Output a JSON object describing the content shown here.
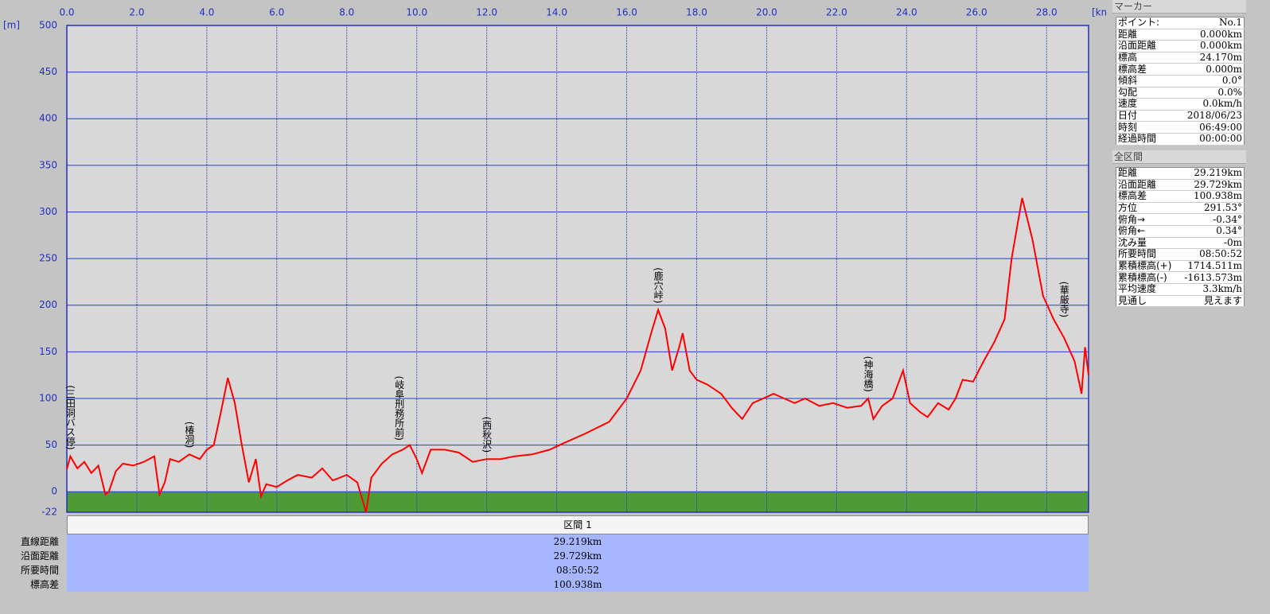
{
  "chart_data": {
    "type": "line",
    "y_unit_label": "[m]",
    "x_unit_label": "[km]",
    "x": [
      0,
      0.1,
      0.3,
      0.5,
      0.7,
      0.9,
      1.1,
      1.2,
      1.4,
      1.6,
      1.9,
      2.2,
      2.5,
      2.65,
      2.8,
      2.95,
      3.2,
      3.5,
      3.8,
      4.0,
      4.2,
      4.4,
      4.6,
      4.8,
      5.0,
      5.2,
      5.4,
      5.55,
      5.7,
      6.0,
      6.3,
      6.6,
      7.0,
      7.3,
      7.6,
      8.0,
      8.3,
      8.55,
      8.7,
      9.0,
      9.3,
      9.6,
      9.8,
      10.0,
      10.15,
      10.4,
      10.8,
      11.2,
      11.6,
      12.0,
      12.4,
      12.8,
      13.3,
      13.8,
      14.2,
      14.8,
      15.5,
      16.0,
      16.4,
      16.7,
      16.9,
      17.1,
      17.3,
      17.5,
      17.6,
      17.8,
      18.0,
      18.3,
      18.7,
      19.0,
      19.3,
      19.6,
      19.9,
      20.2,
      20.5,
      20.8,
      21.1,
      21.5,
      21.9,
      22.3,
      22.7,
      22.9,
      23.05,
      23.3,
      23.6,
      23.9,
      24.1,
      24.4,
      24.6,
      24.9,
      25.2,
      25.4,
      25.6,
      25.9,
      26.2,
      26.5,
      26.8,
      27.0,
      27.3,
      27.6,
      27.9,
      28.2,
      28.5,
      28.8,
      29.0,
      29.1,
      29.2
    ],
    "values": [
      24,
      38,
      25,
      32,
      20,
      28,
      -3,
      0,
      22,
      30,
      28,
      32,
      38,
      -3,
      10,
      35,
      32,
      40,
      35,
      45,
      50,
      85,
      122,
      95,
      50,
      10,
      35,
      -5,
      8,
      5,
      12,
      18,
      15,
      25,
      12,
      18,
      10,
      -22,
      15,
      30,
      40,
      45,
      50,
      35,
      20,
      45,
      45,
      42,
      32,
      35,
      35,
      38,
      40,
      45,
      52,
      62,
      75,
      100,
      130,
      170,
      195,
      175,
      130,
      155,
      170,
      130,
      120,
      115,
      105,
      90,
      78,
      95,
      100,
      105,
      100,
      95,
      100,
      92,
      95,
      90,
      92,
      100,
      78,
      92,
      100,
      130,
      95,
      85,
      80,
      95,
      88,
      100,
      120,
      118,
      140,
      160,
      185,
      250,
      315,
      270,
      210,
      185,
      165,
      140,
      105,
      155,
      125
    ],
    "color": "#ff0000",
    "xlim": [
      0,
      29.2
    ],
    "ylim": [
      -22,
      500
    ],
    "xticks": [
      {
        "value": 0,
        "label": "0.0"
      },
      {
        "value": 2,
        "label": "2.0"
      },
      {
        "value": 4,
        "label": "4.0"
      },
      {
        "value": 6,
        "label": "6.0"
      },
      {
        "value": 8,
        "label": "8.0"
      },
      {
        "value": 10,
        "label": "10.0"
      },
      {
        "value": 12,
        "label": "12.0"
      },
      {
        "value": 14,
        "label": "14.0"
      },
      {
        "value": 16,
        "label": "16.0"
      },
      {
        "value": 18,
        "label": "18.0"
      },
      {
        "value": 20,
        "label": "20.0"
      },
      {
        "value": 22,
        "label": "22.0"
      },
      {
        "value": 24,
        "label": "24.0"
      },
      {
        "value": 26,
        "label": "26.0"
      },
      {
        "value": 28,
        "label": "28.0"
      }
    ],
    "yticks": [
      -22,
      0,
      50,
      100,
      150,
      200,
      250,
      300,
      350,
      400,
      450,
      500
    ],
    "grid": true,
    "grid_color": "#2040d0",
    "ground_color": "#4e9a34",
    "annotations": [
      {
        "text": "(三田洞バス停)",
        "x": 0.1,
        "y": 38
      },
      {
        "text": "(椿洞)",
        "x": 3.5,
        "y": 40
      },
      {
        "text": "(岐阜刑務所前)",
        "x": 9.5,
        "y": 48
      },
      {
        "text": "(西秋沢)",
        "x": 12.0,
        "y": 35
      },
      {
        "text": "(鹿穴峠)",
        "x": 16.9,
        "y": 195
      },
      {
        "text": "(神海橋)",
        "x": 22.9,
        "y": 100
      },
      {
        "text": "(華厳寺)",
        "x": 28.5,
        "y": 180
      }
    ]
  },
  "segment_table": {
    "header": "区間 1",
    "rows": [
      [
        "直線距離",
        "29.219km"
      ],
      [
        "沿面距離",
        "29.729km"
      ],
      [
        "所要時間",
        "08:50:52"
      ],
      [
        "標高差",
        "100.938m"
      ]
    ]
  },
  "marker_panel": {
    "title": "マーカー",
    "rows": [
      [
        "ポイント:",
        "No.1"
      ],
      [
        "距離",
        "0.000km"
      ],
      [
        "沿面距離",
        "0.000km"
      ],
      [
        "標高",
        "24.170m"
      ],
      [
        "標高差",
        "0.000m"
      ],
      [
        "傾斜",
        "0.0°"
      ],
      [
        "勾配",
        "0.0%"
      ],
      [
        "速度",
        "0.0km/h"
      ],
      [
        "日付",
        "2018/06/23"
      ],
      [
        "時刻",
        "06:49:00"
      ],
      [
        "経過時間",
        "00:00:00"
      ]
    ]
  },
  "total_panel": {
    "title": "全区間",
    "rows": [
      [
        "距離",
        "29.219km"
      ],
      [
        "沿面距離",
        "29.729km"
      ],
      [
        "標高差",
        "100.938m"
      ],
      [
        "方位",
        "291.53°"
      ],
      [
        "俯角→",
        "-0.34°"
      ],
      [
        "俯角←",
        "0.34°"
      ],
      [
        "沈み量",
        "-0m"
      ],
      [
        "所要時間",
        "08:50:52"
      ],
      [
        "累積標高(+)",
        "1714.511m"
      ],
      [
        "累積標高(-)",
        "-1613.573m"
      ],
      [
        "平均速度",
        "3.3km/h"
      ],
      [
        "見通し",
        "見えます"
      ]
    ]
  }
}
